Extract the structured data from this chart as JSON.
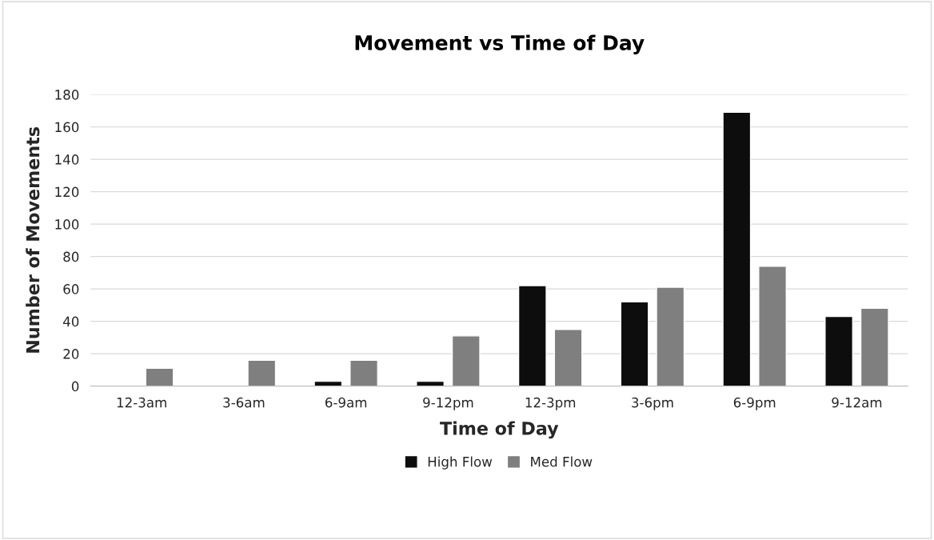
{
  "chart_data": {
    "type": "bar",
    "title": "Movement vs Time of Day",
    "xlabel": "Time of Day",
    "ylabel": "Number of Movements",
    "categories": [
      "12-3am",
      "3-6am",
      "6-9am",
      "9-12pm",
      "12-3pm",
      "3-6pm",
      "6-9pm",
      "9-12am"
    ],
    "series": [
      {
        "name": "High Flow",
        "color": "#0d0d0d",
        "values": [
          0,
          0,
          3,
          3,
          62,
          52,
          169,
          43
        ]
      },
      {
        "name": "Med Flow",
        "color": "#7f7f7f",
        "values": [
          11,
          16,
          16,
          31,
          35,
          61,
          74,
          48
        ]
      }
    ],
    "ylim": [
      0,
      180
    ],
    "yticks": [
      0,
      20,
      40,
      60,
      80,
      100,
      120,
      140,
      160,
      180
    ],
    "grid": "y",
    "legend": "bottom"
  }
}
